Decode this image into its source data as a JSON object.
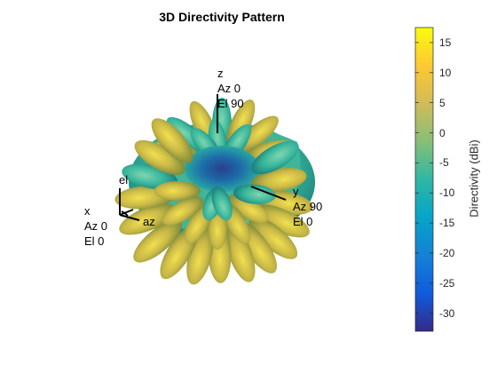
{
  "chart_data": {
    "type": "3d-surface",
    "title": "3D Directivity Pattern",
    "colorbar": {
      "label": "Directivity (dBi)",
      "range": [
        -33,
        17.5
      ],
      "ticks": [
        15,
        10,
        5,
        0,
        -5,
        -10,
        -15,
        -20,
        -25,
        -30
      ],
      "tick_labels": [
        "15",
        "10",
        "5",
        "0",
        "-5",
        "-10",
        "-15",
        "-20",
        "-25",
        "-30"
      ],
      "colormap": "parula",
      "placement": "right"
    },
    "axes_annotations": {
      "z": [
        "z",
        "Az 0",
        "El 90"
      ],
      "y": [
        "y",
        "Az 90",
        "El 0"
      ],
      "x": [
        "x",
        "Az 0",
        "El 0"
      ],
      "el": "el",
      "az": "az"
    }
  },
  "colors": {
    "parula": [
      "#352a87",
      "#0f5cdd",
      "#1481d6",
      "#06a4ca",
      "#2eb7a4",
      "#87bf77",
      "#d1bb59",
      "#fec832",
      "#f9fb0e"
    ]
  }
}
